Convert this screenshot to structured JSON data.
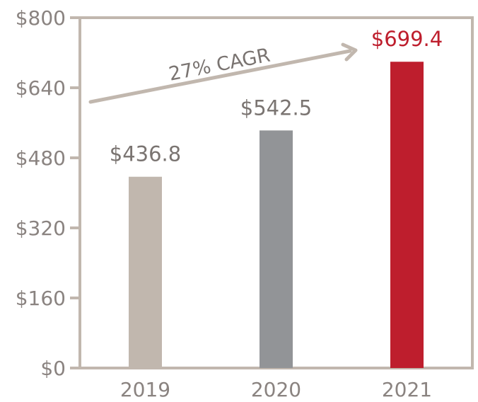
{
  "chart_data": {
    "type": "bar",
    "categories": [
      "2019",
      "2020",
      "2021"
    ],
    "values": [
      436.8,
      542.5,
      699.4
    ],
    "value_labels": [
      "$436.8",
      "$542.5",
      "$699.4"
    ],
    "bar_colors": [
      "#c1b7ae",
      "#929497",
      "#be1e2d"
    ],
    "label_colors": [
      "#7a7471",
      "#7a7471",
      "#be1e2d"
    ],
    "ylim": [
      0,
      800
    ],
    "yticks": [
      0,
      160,
      320,
      480,
      640,
      800
    ],
    "ytick_labels": [
      "$0",
      "$160",
      "$320",
      "$480",
      "$640",
      "$800"
    ],
    "annotation": "27% CAGR",
    "annotation_color": "#c1b7ae",
    "frame_color": "#c1b7ae",
    "title": "",
    "xlabel": "",
    "ylabel": "",
    "grid": false
  }
}
